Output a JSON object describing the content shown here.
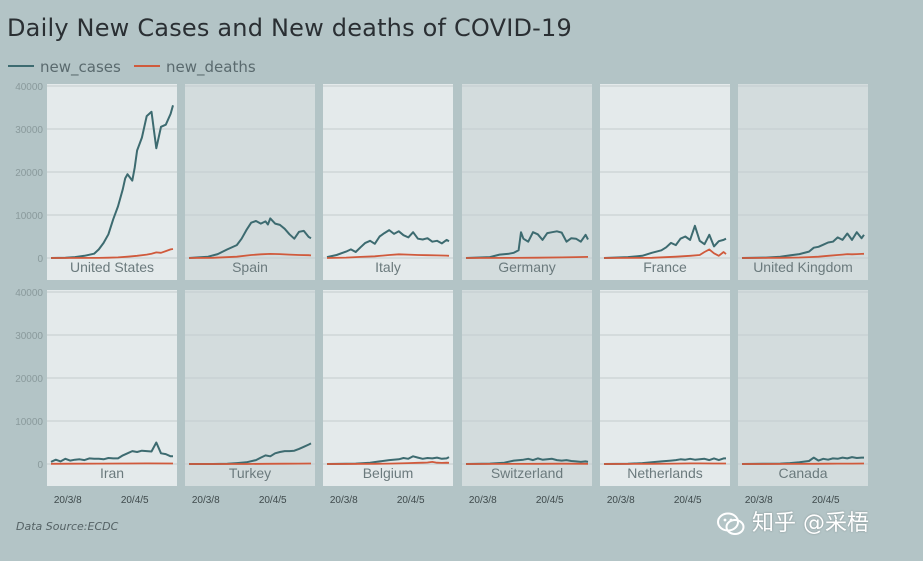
{
  "title": "Daily New Cases and New deaths of COVID-19",
  "legend": [
    {
      "label": "new_cases",
      "color": "#3d6b70"
    },
    {
      "label": "new_deaths",
      "color": "#d05a3c"
    }
  ],
  "source": "Data Source:ECDC",
  "watermark": "知乎 @采梧",
  "colors": {
    "panel_light": "#e4eaeb",
    "panel_dark": "#d3dcdd",
    "grid": "#c3ccce",
    "axis_text": "#8a9a9c",
    "panel_label": "#6b7a7d"
  },
  "chart_data": {
    "type": "line",
    "title": "Daily New Cases and New deaths of COVID-19",
    "xlabel": "",
    "ylabel": "",
    "ylim": [
      0,
      40000
    ],
    "yticks": [
      0,
      10000,
      20000,
      30000,
      40000
    ],
    "x_tick_labels": [
      "20/3/8",
      "20/4/5"
    ],
    "x_tick_days": [
      7,
      35
    ],
    "x_range_days": [
      0,
      51
    ],
    "layout": "small-multiples 2 rows x 6 columns, shared axes",
    "panels": [
      {
        "name": "United States",
        "series": [
          {
            "name": "new_cases",
            "x": [
              0,
              6,
              10,
              14,
              18,
              20,
              22,
              24,
              26,
              28,
              30,
              31,
              32,
              34,
              35,
              36,
              38,
              40,
              42,
              44,
              46,
              48,
              50,
              51
            ],
            "y": [
              0,
              50,
              200,
              500,
              1000,
              2000,
              3500,
              5500,
              9000,
              12000,
              16000,
              18500,
              19500,
              18000,
              21000,
              25000,
              28000,
              33000,
              34000,
              25500,
              30500,
              31000,
              33500,
              35500
            ]
          },
          {
            "name": "new_deaths",
            "x": [
              0,
              20,
              24,
              28,
              32,
              36,
              40,
              42,
              44,
              46,
              48,
              50,
              51
            ],
            "y": [
              0,
              30,
              60,
              150,
              300,
              500,
              800,
              1000,
              1300,
              1200,
              1600,
              2000,
              2100
            ]
          }
        ]
      },
      {
        "name": "Spain",
        "series": [
          {
            "name": "new_cases",
            "x": [
              0,
              8,
              12,
              16,
              20,
              22,
              24,
              26,
              28,
              30,
              32,
              33,
              34,
              36,
              38,
              40,
              42,
              44,
              46,
              48,
              50,
              51
            ],
            "y": [
              0,
              300,
              900,
              2000,
              3000,
              4500,
              6500,
              8200,
              8600,
              8000,
              8500,
              7800,
              9200,
              8000,
              7700,
              6800,
              5500,
              4500,
              6100,
              6300,
              4900,
              4600
            ]
          },
          {
            "name": "new_deaths",
            "x": [
              0,
              10,
              20,
              26,
              30,
              34,
              38,
              42,
              46,
              50,
              51
            ],
            "y": [
              0,
              50,
              300,
              700,
              850,
              950,
              900,
              800,
              700,
              650,
              600
            ]
          }
        ]
      },
      {
        "name": "Italy",
        "series": [
          {
            "name": "new_cases",
            "x": [
              0,
              4,
              8,
              10,
              12,
              14,
              16,
              18,
              20,
              22,
              24,
              26,
              28,
              30,
              32,
              34,
              36,
              38,
              40,
              42,
              44,
              46,
              48,
              50,
              51
            ],
            "y": [
              200,
              700,
              1500,
              2000,
              1400,
              2500,
              3500,
              4000,
              3300,
              5000,
              5800,
              6500,
              5600,
              6200,
              5300,
              4800,
              6000,
              4500,
              4300,
              4600,
              3800,
              4000,
              3400,
              4200,
              3900
            ]
          },
          {
            "name": "new_deaths",
            "x": [
              0,
              8,
              14,
              20,
              26,
              30,
              34,
              38,
              42,
              46,
              50,
              51
            ],
            "y": [
              0,
              100,
              250,
              400,
              700,
              850,
              800,
              700,
              650,
              600,
              550,
              500
            ]
          }
        ]
      },
      {
        "name": "Germany",
        "series": [
          {
            "name": "new_cases",
            "x": [
              0,
              10,
              14,
              18,
              20,
              22,
              23,
              24,
              26,
              28,
              30,
              32,
              34,
              36,
              38,
              40,
              42,
              44,
              46,
              48,
              50,
              51
            ],
            "y": [
              0,
              200,
              800,
              1000,
              1200,
              1800,
              6000,
              4500,
              3800,
              6000,
              5500,
              4200,
              5800,
              6000,
              6200,
              5900,
              3800,
              4600,
              4500,
              3800,
              5400,
              4300
            ]
          },
          {
            "name": "new_deaths",
            "x": [
              0,
              20,
              30,
              40,
              46,
              51
            ],
            "y": [
              0,
              20,
              80,
              150,
              200,
              250
            ]
          }
        ]
      },
      {
        "name": "France",
        "series": [
          {
            "name": "new_cases",
            "x": [
              0,
              10,
              16,
              20,
              24,
              26,
              28,
              30,
              32,
              34,
              36,
              38,
              40,
              42,
              44,
              46,
              48,
              50,
              51
            ],
            "y": [
              0,
              200,
              500,
              1200,
              1800,
              2500,
              3500,
              3000,
              4500,
              5000,
              4200,
              7500,
              4000,
              3200,
              5400,
              2700,
              3900,
              4200,
              4500
            ]
          },
          {
            "name": "new_deaths",
            "x": [
              0,
              20,
              30,
              36,
              40,
              42,
              44,
              46,
              48,
              50,
              51
            ],
            "y": [
              0,
              50,
              300,
              500,
              700,
              1400,
              2000,
              1100,
              500,
              1400,
              900
            ]
          }
        ]
      },
      {
        "name": "United Kingdom",
        "series": [
          {
            "name": "new_cases",
            "x": [
              0,
              10,
              16,
              20,
              24,
              28,
              30,
              32,
              34,
              36,
              38,
              40,
              42,
              44,
              46,
              48,
              50,
              51
            ],
            "y": [
              0,
              100,
              300,
              600,
              900,
              1500,
              2400,
              2600,
              3100,
              3600,
              3800,
              4800,
              4200,
              5700,
              4200,
              6000,
              4600,
              5400
            ]
          },
          {
            "name": "new_deaths",
            "x": [
              0,
              16,
              24,
              28,
              32,
              36,
              40,
              42,
              44,
              46,
              48,
              50,
              51
            ],
            "y": [
              0,
              50,
              120,
              200,
              300,
              500,
              700,
              800,
              900,
              850,
              900,
              950,
              980
            ]
          }
        ]
      },
      {
        "name": "Iran",
        "series": [
          {
            "name": "new_cases",
            "x": [
              0,
              2,
              4,
              6,
              8,
              10,
              12,
              14,
              16,
              18,
              20,
              22,
              24,
              26,
              28,
              30,
              32,
              34,
              36,
              38,
              40,
              42,
              44,
              46,
              48,
              50,
              51
            ],
            "y": [
              500,
              1000,
              600,
              1200,
              800,
              1000,
              1100,
              900,
              1300,
              1200,
              1200,
              1100,
              1400,
              1300,
              1300,
              2000,
              2500,
              3000,
              2800,
              3100,
              3000,
              2900,
              5000,
              2500,
              2300,
              1800,
              1800
            ]
          },
          {
            "name": "new_deaths",
            "x": [
              0,
              10,
              20,
              30,
              40,
              51
            ],
            "y": [
              50,
              80,
              100,
              120,
              130,
              120
            ]
          }
        ]
      },
      {
        "name": "Turkey",
        "series": [
          {
            "name": "new_cases",
            "x": [
              0,
              10,
              16,
              20,
              24,
              28,
              30,
              32,
              34,
              36,
              38,
              40,
              42,
              44,
              46,
              48,
              50,
              51
            ],
            "y": [
              0,
              0,
              50,
              200,
              400,
              900,
              1500,
              2000,
              1800,
              2500,
              2800,
              3000,
              3000,
              3100,
              3500,
              4000,
              4500,
              4800
            ]
          },
          {
            "name": "new_deaths",
            "x": [
              0,
              24,
              32,
              40,
              46,
              51
            ],
            "y": [
              0,
              10,
              40,
              70,
              90,
              110
            ]
          }
        ]
      },
      {
        "name": "Belgium",
        "series": [
          {
            "name": "new_cases",
            "x": [
              0,
              12,
              18,
              22,
              26,
              30,
              32,
              34,
              36,
              38,
              40,
              42,
              44,
              46,
              48,
              50,
              51
            ],
            "y": [
              0,
              100,
              300,
              600,
              900,
              1100,
              1400,
              1200,
              1800,
              1500,
              1200,
              1400,
              1300,
              1500,
              1200,
              1300,
              1600
            ]
          },
          {
            "name": "new_deaths",
            "x": [
              0,
              20,
              26,
              30,
              34,
              38,
              40,
              42,
              44,
              46,
              48,
              50,
              51
            ],
            "y": [
              0,
              50,
              100,
              150,
              200,
              280,
              300,
              350,
              500,
              300,
              250,
              300,
              280
            ]
          }
        ]
      },
      {
        "name": "Switzerland",
        "series": [
          {
            "name": "new_cases",
            "x": [
              0,
              10,
              16,
              20,
              24,
              26,
              28,
              30,
              32,
              34,
              36,
              38,
              40,
              42,
              44,
              46,
              48,
              50,
              51
            ],
            "y": [
              0,
              100,
              300,
              800,
              1000,
              1200,
              900,
              1300,
              1000,
              1100,
              1200,
              900,
              800,
              900,
              700,
              600,
              500,
              600,
              500
            ]
          },
          {
            "name": "new_deaths",
            "x": [
              0,
              20,
              30,
              40,
              51
            ],
            "y": [
              0,
              20,
              50,
              60,
              50
            ]
          }
        ]
      },
      {
        "name": "Netherlands",
        "series": [
          {
            "name": "new_cases",
            "x": [
              0,
              10,
              16,
              20,
              24,
              28,
              30,
              32,
              34,
              36,
              38,
              40,
              42,
              44,
              46,
              48,
              50,
              51
            ],
            "y": [
              0,
              50,
              200,
              400,
              600,
              800,
              900,
              1100,
              1000,
              1200,
              1000,
              1100,
              1200,
              900,
              1300,
              900,
              1300,
              1300
            ]
          },
          {
            "name": "new_deaths",
            "x": [
              0,
              20,
              30,
              36,
              40,
              46,
              51
            ],
            "y": [
              0,
              40,
              100,
              150,
              140,
              120,
              110
            ]
          }
        ]
      },
      {
        "name": "Canada",
        "series": [
          {
            "name": "new_cases",
            "x": [
              0,
              16,
              20,
              24,
              28,
              30,
              32,
              34,
              36,
              38,
              40,
              42,
              44,
              46,
              48,
              50,
              51
            ],
            "y": [
              0,
              100,
              200,
              400,
              700,
              1500,
              800,
              1200,
              1000,
              1300,
              1200,
              1500,
              1300,
              1600,
              1400,
              1500,
              1500
            ]
          },
          {
            "name": "new_deaths",
            "x": [
              0,
              24,
              30,
              36,
              40,
              46,
              51
            ],
            "y": [
              0,
              20,
              50,
              70,
              90,
              100,
              110
            ]
          }
        ]
      }
    ]
  }
}
